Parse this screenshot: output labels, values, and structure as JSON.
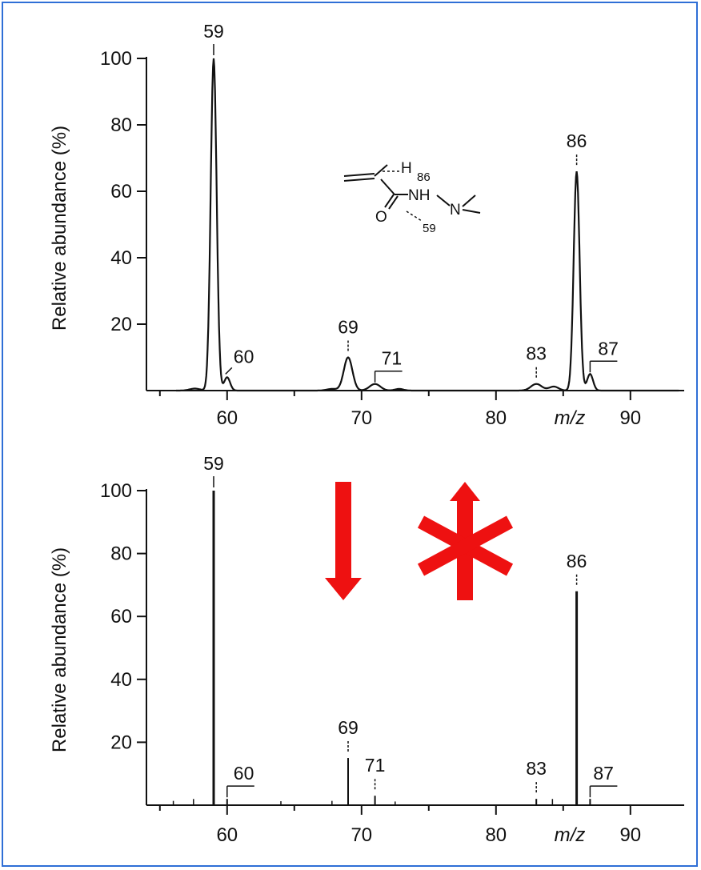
{
  "accent": "#ee1111",
  "frame_color": "#2f6fd6",
  "structure": {
    "h_label": "H",
    "h_sub": "86",
    "nh_label": "NH",
    "n_label": "N",
    "o_label": "O",
    "sub59": "59"
  },
  "chart_data": [
    {
      "type": "line",
      "style": "continuous profile spectrum",
      "xlabel": "m/z",
      "ylabel": "Relative abundance (%)",
      "xlim": [
        54,
        94
      ],
      "ylim": [
        0,
        100
      ],
      "x_ticks": [
        60,
        70,
        80,
        90
      ],
      "x_tick_labels": [
        "60",
        "70",
        "80",
        "90"
      ],
      "y_ticks": [
        20,
        40,
        60,
        80,
        100
      ],
      "y_tick_labels": [
        "20",
        "40",
        "60",
        "80",
        "100"
      ],
      "grid": false,
      "legend": "none",
      "peaks": [
        {
          "mz": 59,
          "label": "59",
          "intensity": 100
        },
        {
          "mz": 60,
          "label": "60",
          "intensity": 4
        },
        {
          "mz": 69,
          "label": "69",
          "intensity": 10
        },
        {
          "mz": 71,
          "label": "71",
          "intensity": 2
        },
        {
          "mz": 83,
          "label": "83",
          "intensity": 2
        },
        {
          "mz": 86,
          "label": "86",
          "intensity": 66
        },
        {
          "mz": 87,
          "label": "87",
          "intensity": 5
        }
      ]
    },
    {
      "type": "bar",
      "style": "centroid stick spectrum",
      "xlabel": "m/z",
      "ylabel": "Relative abundance (%)",
      "xlim": [
        54,
        94
      ],
      "ylim": [
        0,
        100
      ],
      "x_ticks": [
        60,
        70,
        80,
        90
      ],
      "x_tick_labels": [
        "60",
        "70",
        "80",
        "90"
      ],
      "y_ticks": [
        20,
        40,
        60,
        80,
        100
      ],
      "y_tick_labels": [
        "20",
        "40",
        "60",
        "80",
        "100"
      ],
      "grid": false,
      "legend": "none",
      "peaks": [
        {
          "mz": 59,
          "label": "59",
          "intensity": 100
        },
        {
          "mz": 60,
          "label": "60",
          "intensity": 2
        },
        {
          "mz": 69,
          "label": "69",
          "intensity": 15
        },
        {
          "mz": 71,
          "label": "71",
          "intensity": 3
        },
        {
          "mz": 83,
          "label": "83",
          "intensity": 2
        },
        {
          "mz": 86,
          "label": "86",
          "intensity": 68
        },
        {
          "mz": 87,
          "label": "87",
          "intensity": 2
        }
      ],
      "minor_sticks": [
        {
          "mz": 56,
          "intensity": 0.6
        },
        {
          "mz": 57.5,
          "intensity": 1.2
        },
        {
          "mz": 64,
          "intensity": 0.5
        },
        {
          "mz": 67.8,
          "intensity": 0.6
        },
        {
          "mz": 72.5,
          "intensity": 0.4
        },
        {
          "mz": 84.2,
          "intensity": 1.2
        }
      ]
    }
  ]
}
